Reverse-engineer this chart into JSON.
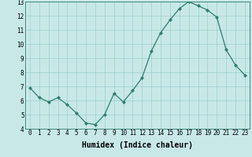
{
  "x": [
    0,
    1,
    2,
    3,
    4,
    5,
    6,
    7,
    8,
    9,
    10,
    11,
    12,
    13,
    14,
    15,
    16,
    17,
    18,
    19,
    20,
    21,
    22,
    23
  ],
  "y": [
    6.9,
    6.2,
    5.9,
    6.2,
    5.7,
    5.1,
    4.4,
    4.3,
    5.0,
    6.5,
    5.9,
    6.7,
    7.6,
    9.5,
    10.8,
    11.7,
    12.5,
    13.0,
    12.7,
    12.4,
    11.9,
    9.6,
    8.5,
    7.8
  ],
  "line_color": "#2E7D6E",
  "marker": "D",
  "markersize": 2.0,
  "linewidth": 0.9,
  "bg_color": "#C8E8E8",
  "grid_color": "#9ECECE",
  "xlabel": "Humidex (Indice chaleur)",
  "xlim": [
    -0.5,
    23.5
  ],
  "ylim": [
    4,
    13
  ],
  "yticks": [
    4,
    5,
    6,
    7,
    8,
    9,
    10,
    11,
    12,
    13
  ],
  "xticks": [
    0,
    1,
    2,
    3,
    4,
    5,
    6,
    7,
    8,
    9,
    10,
    11,
    12,
    13,
    14,
    15,
    16,
    17,
    18,
    19,
    20,
    21,
    22,
    23
  ],
  "tick_fontsize": 5.5,
  "label_fontsize": 7.0
}
